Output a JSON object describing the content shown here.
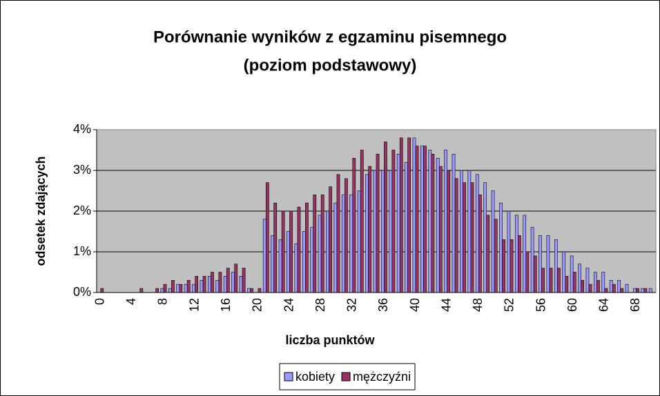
{
  "chart_data": {
    "type": "bar",
    "title": [
      "Porównanie wyników z egzaminu pisemnego",
      "(poziom podstawowy)"
    ],
    "x_label": "liczba punktów",
    "y_label": "odsetek zdających",
    "categories": [
      "0",
      null,
      null,
      null,
      "4",
      null,
      null,
      null,
      "8",
      null,
      null,
      null,
      "12",
      null,
      null,
      null,
      "16",
      null,
      null,
      null,
      "20",
      null,
      null,
      null,
      "24",
      null,
      null,
      null,
      "28",
      null,
      null,
      null,
      "32",
      null,
      null,
      null,
      "36",
      null,
      null,
      null,
      "40",
      null,
      null,
      null,
      "44",
      null,
      null,
      null,
      "48",
      null,
      null,
      null,
      "52",
      null,
      null,
      null,
      "56",
      null,
      null,
      null,
      "60",
      null,
      null,
      null,
      "64",
      null,
      null,
      null,
      "68",
      null,
      null
    ],
    "series": [
      {
        "name": "kobiety",
        "color": "#9999ff",
        "values": [
          0,
          0,
          0,
          0,
          0,
          0,
          0,
          0,
          0.1,
          0.1,
          0.2,
          0.2,
          0.2,
          0.3,
          0.4,
          0.3,
          0.4,
          0.5,
          0.4,
          0.1,
          0,
          1.8,
          1.4,
          1.3,
          1.5,
          1.2,
          1.5,
          1.6,
          1.9,
          2.0,
          2.2,
          2.4,
          2.4,
          2.5,
          2.9,
          3.0,
          3.0,
          3.0,
          3.4,
          3.2,
          3.8,
          3.6,
          3.5,
          3.3,
          3.5,
          3.4,
          3.0,
          3.0,
          2.9,
          2.7,
          2.5,
          2.2,
          2.0,
          1.9,
          1.9,
          1.6,
          1.4,
          1.4,
          1.3,
          1.0,
          0.9,
          0.7,
          0.6,
          0.5,
          0.5,
          0.3,
          0.3,
          0.2,
          0.1,
          0.1,
          0.1
        ]
      },
      {
        "name": "mężczyźni",
        "color": "#993366",
        "values": [
          0.1,
          0,
          0,
          0,
          0,
          0.1,
          0,
          0.1,
          0.2,
          0.3,
          0.2,
          0.3,
          0.4,
          0.4,
          0.5,
          0.5,
          0.6,
          0.7,
          0.6,
          0.1,
          0.1,
          2.7,
          2.2,
          2.0,
          2.0,
          2.1,
          2.2,
          2.4,
          2.4,
          2.6,
          2.9,
          2.8,
          3.3,
          3.5,
          3.1,
          3.4,
          3.7,
          3.5,
          3.8,
          3.8,
          3.6,
          3.6,
          3.4,
          3.1,
          3.0,
          2.8,
          2.7,
          2.7,
          2.4,
          1.9,
          1.8,
          1.3,
          1.3,
          1.4,
          1.0,
          0.9,
          0.6,
          0.6,
          0.6,
          0.4,
          0.5,
          0.3,
          0.2,
          0.3,
          0.1,
          0.2,
          0.1,
          0,
          0.1,
          0.1,
          0
        ]
      }
    ],
    "ylim": [
      0,
      4
    ],
    "yticks": [
      {
        "value": 0,
        "label": "0%"
      },
      {
        "value": 1,
        "label": "1%"
      },
      {
        "value": 2,
        "label": "2%"
      },
      {
        "value": 3,
        "label": "3%"
      },
      {
        "value": 4,
        "label": "4%"
      }
    ],
    "grid": true,
    "legend": "bottom"
  }
}
